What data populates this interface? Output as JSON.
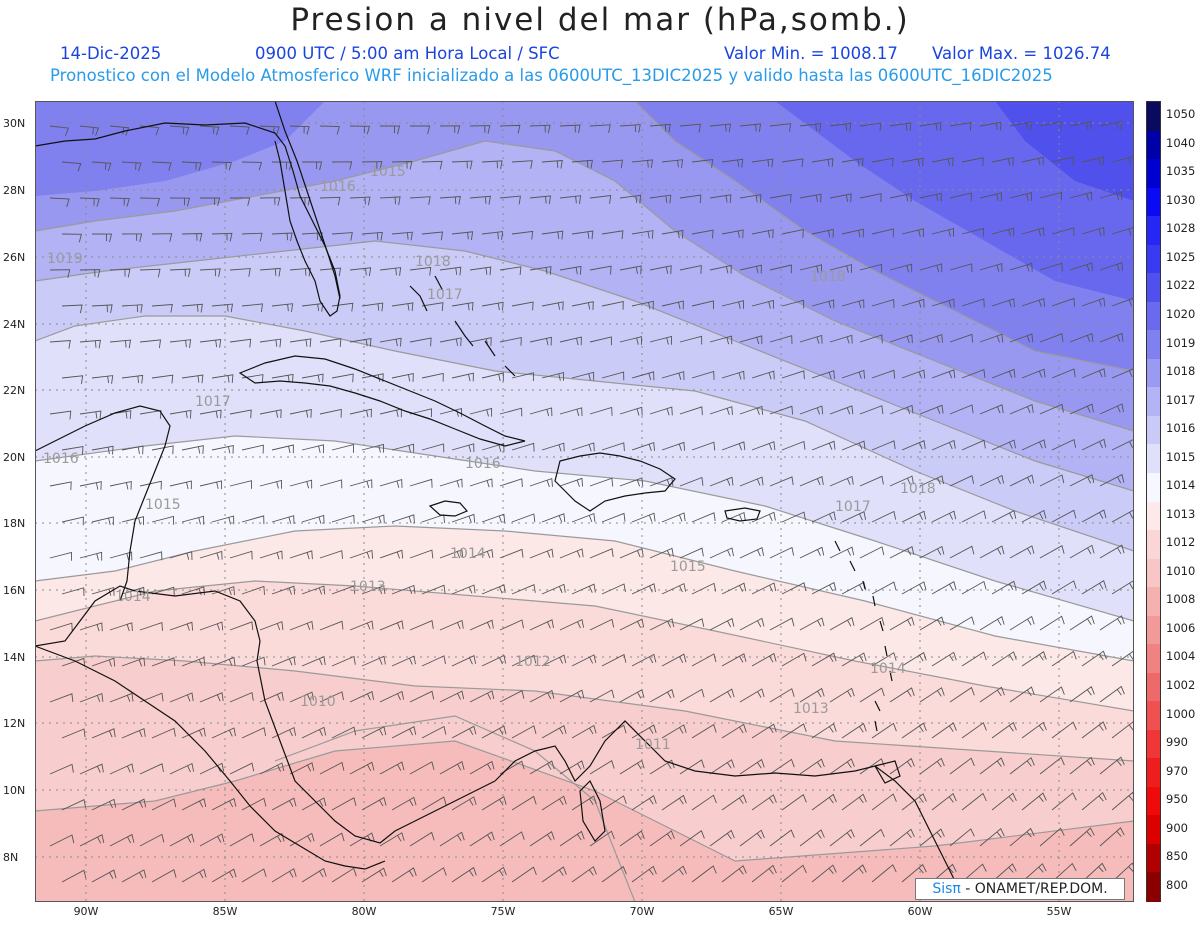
{
  "title": "Presion a nivel del mar (hPa,somb.)",
  "header": {
    "date": "14-Dic-2025",
    "time": "0900 UTC / 5:00 am Hora Local / SFC",
    "min_label": "Valor Min. = 1008.17",
    "max_label": "Valor Max. = 1026.74",
    "valid_text": "Pronostico con el Modelo Atmosferico WRF inicializado a las 0600UTC_13DIC2025 y valido hasta las  0600UTC_16DIC2025"
  },
  "map": {
    "lat_labels": [
      "30N",
      "28N",
      "26N",
      "24N",
      "22N",
      "20N",
      "18N",
      "16N",
      "14N",
      "12N",
      "10N",
      "8N"
    ],
    "lon_labels": [
      "90W",
      "85W",
      "80W",
      "75W",
      "70W",
      "65W",
      "60W",
      "55W"
    ],
    "isobars": [
      {
        "label": "1019"
      },
      {
        "label": "1018"
      },
      {
        "label": "1017"
      },
      {
        "label": "1016"
      },
      {
        "label": "1015"
      },
      {
        "label": "1014"
      },
      {
        "label": "1013"
      },
      {
        "label": "1012"
      },
      {
        "label": "1011"
      },
      {
        "label": "1010"
      }
    ],
    "contour_labels": [
      "1019",
      "1018",
      "1017",
      "1016",
      "1015",
      "1014",
      "1013",
      "1012",
      "1011",
      "1010",
      "1016",
      "1017",
      "1018",
      "1015",
      "1014",
      "1016",
      "1017",
      "1018",
      "1014",
      "1015",
      "1013",
      "1011",
      "1014",
      "1013",
      "1012"
    ]
  },
  "colorbar": {
    "levels": [
      {
        "label": "1050",
        "color": "#0a0a5e"
      },
      {
        "label": "1040",
        "color": "#0000a8"
      },
      {
        "label": "1035",
        "color": "#0000d0"
      },
      {
        "label": "1030",
        "color": "#0a0af5"
      },
      {
        "label": "1028",
        "color": "#2626f5"
      },
      {
        "label": "1025",
        "color": "#3a3af2"
      },
      {
        "label": "1022",
        "color": "#5050ee"
      },
      {
        "label": "1020",
        "color": "#6a6aee"
      },
      {
        "label": "1019",
        "color": "#8080f0"
      },
      {
        "label": "1018",
        "color": "#9a9af2"
      },
      {
        "label": "1017",
        "color": "#b3b3f5"
      },
      {
        "label": "1016",
        "color": "#cacaf8"
      },
      {
        "label": "1015",
        "color": "#e0e0fa"
      },
      {
        "label": "1014",
        "color": "#f7f7ff"
      },
      {
        "label": "1013",
        "color": "#fde9e9"
      },
      {
        "label": "1012",
        "color": "#fad6d6"
      },
      {
        "label": "1010",
        "color": "#f8c6c6"
      },
      {
        "label": "1008",
        "color": "#f5b0b0"
      },
      {
        "label": "1006",
        "color": "#f29a9a"
      },
      {
        "label": "1004",
        "color": "#f08282"
      },
      {
        "label": "1002",
        "color": "#ee6a6a"
      },
      {
        "label": "1000",
        "color": "#f05050"
      },
      {
        "label": "990",
        "color": "#f03636"
      },
      {
        "label": "970",
        "color": "#ee1e1e"
      },
      {
        "label": "950",
        "color": "#f00a0a"
      },
      {
        "label": "900",
        "color": "#dc0000"
      },
      {
        "label": "850",
        "color": "#b00000"
      },
      {
        "label": "800",
        "color": "#8a0000"
      }
    ]
  },
  "credit": {
    "sis": "Sis",
    "pi": "π",
    "rest": " - ONAMET/REP.DOM."
  }
}
